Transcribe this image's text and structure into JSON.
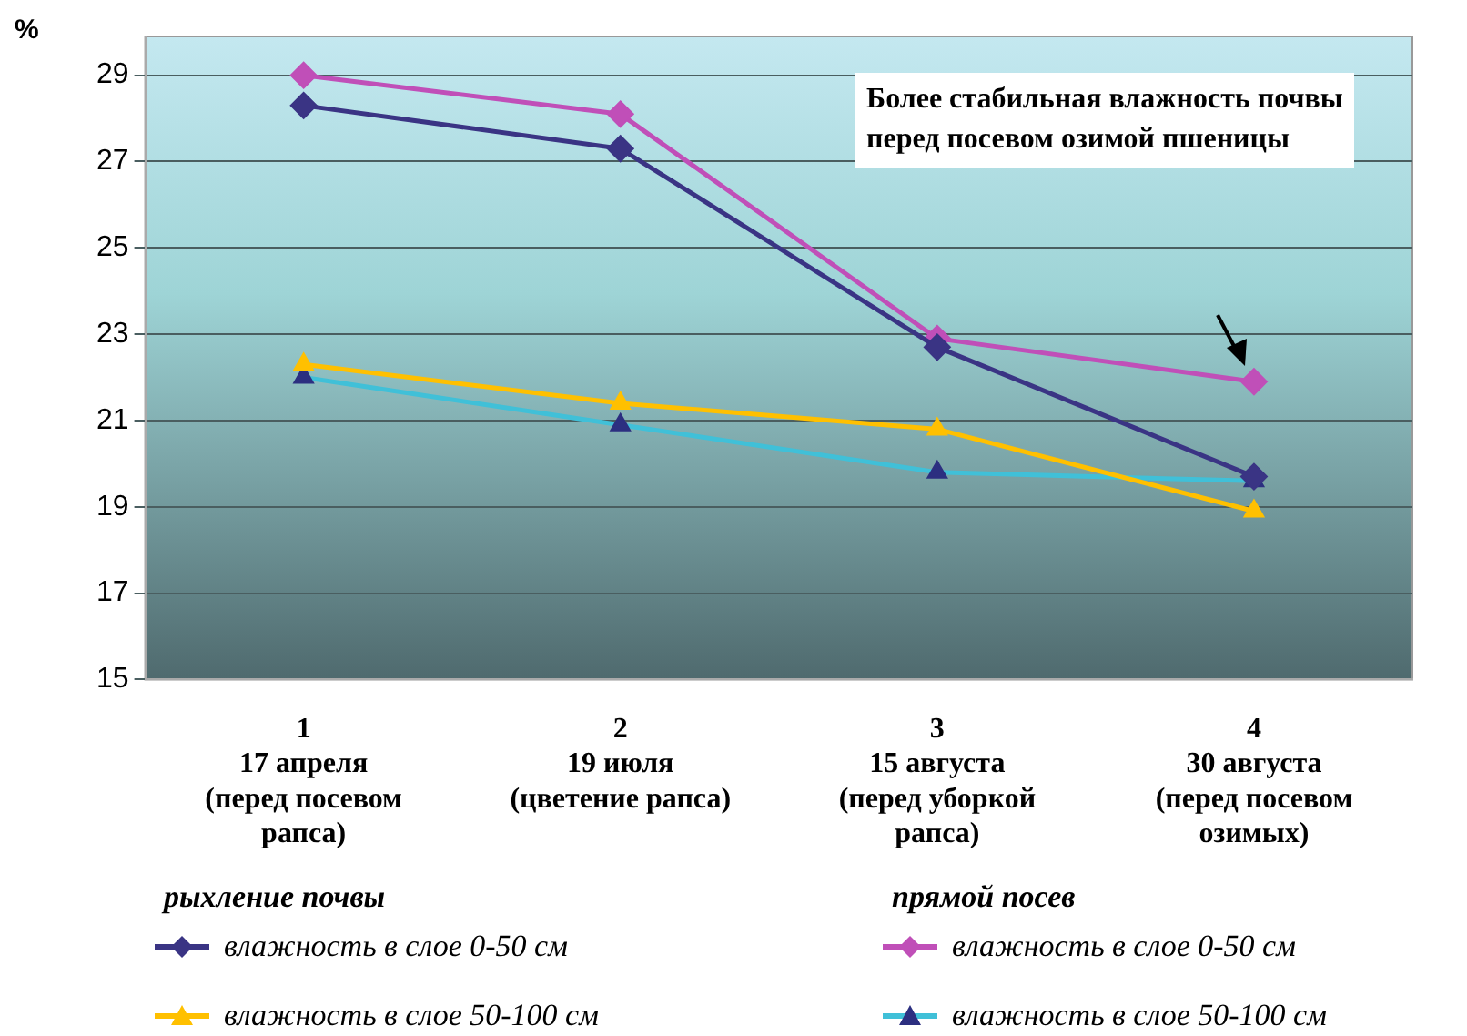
{
  "chart_data": {
    "type": "line",
    "ylabel": "%",
    "categories": [
      "1\n17 апреля\n(перед посевом\nрапса)",
      "2\n19 июля\n(цветение рапса)",
      "3\n15 августа\n(перед уборкой\nрапса)",
      "4\n30 августа\n(перед посевом\nозимых)"
    ],
    "series": [
      {
        "name": "влажность в слое 0-50 см",
        "color": "#3a3484",
        "values": [
          28.3,
          27.3,
          22.7,
          19.7
        ],
        "marker": "diamond"
      },
      {
        "name": "влажность в слое 50-100 см",
        "color": "#ffc000",
        "values": [
          22.3,
          21.4,
          20.8,
          18.9
        ],
        "marker": "triangle"
      },
      {
        "name": "влажность в слое 0-50 см",
        "color": "#c04fb8",
        "values": [
          29.0,
          28.1,
          22.9,
          21.9
        ],
        "marker": "diamond"
      },
      {
        "name": "влажность в слое 50-100 см",
        "color": "#40c0d8",
        "values": [
          22.0,
          20.9,
          19.8,
          19.6
        ],
        "marker": "triangle"
      }
    ],
    "annotations": [
      "Более стабильная влажность почвы перед посевом озимой пшеницы",
      "рыхление почвы",
      "прямой посев"
    ],
    "ylim": [
      15,
      29.9
    ],
    "yticks": [
      15,
      17,
      19,
      21,
      23,
      25,
      27,
      29
    ],
    "grid": "y",
    "legend": "bottom",
    "line_style": "solid"
  }
}
